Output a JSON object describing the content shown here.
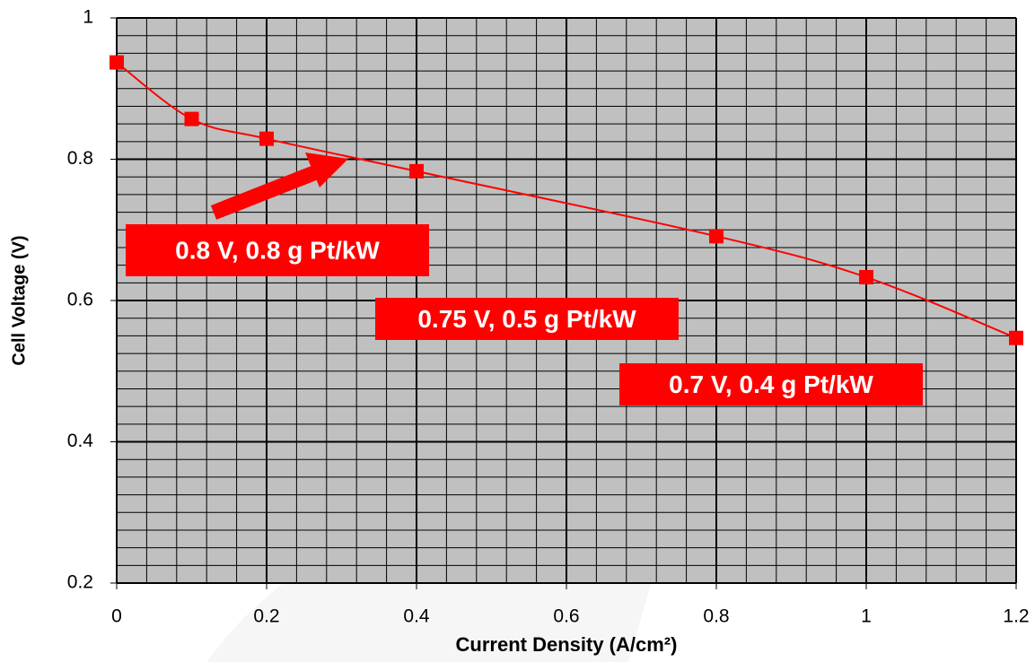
{
  "chart_data": {
    "type": "line",
    "x_label": "Current Density (A/cm²)",
    "y_label": "Cell Voltage (V)",
    "x": [
      0,
      0.1,
      0.2,
      0.4,
      0.8,
      1.0,
      1.2
    ],
    "series": [
      {
        "name": "Cell Voltage",
        "color": "#ff0000",
        "values": [
          0.937,
          0.857,
          0.829,
          0.783,
          0.691,
          0.633,
          0.547
        ]
      }
    ],
    "xlim": [
      0,
      1.2
    ],
    "xticks": [
      0,
      0.2,
      0.4,
      0.6,
      0.8,
      1,
      1.2
    ],
    "ylim": [
      0.2,
      1
    ],
    "yticks": [
      0.2,
      0.4,
      0.6,
      0.8,
      1
    ],
    "grid": true,
    "minor_grid": {
      "x": 5,
      "y": 8
    },
    "annotations": [
      {
        "text": "0.8 V, 0.8 g Pt/kW"
      },
      {
        "text": "0.75 V, 0.5 g Pt/kW"
      },
      {
        "text": "0.7 V, 0.4 g Pt/kW"
      }
    ]
  }
}
